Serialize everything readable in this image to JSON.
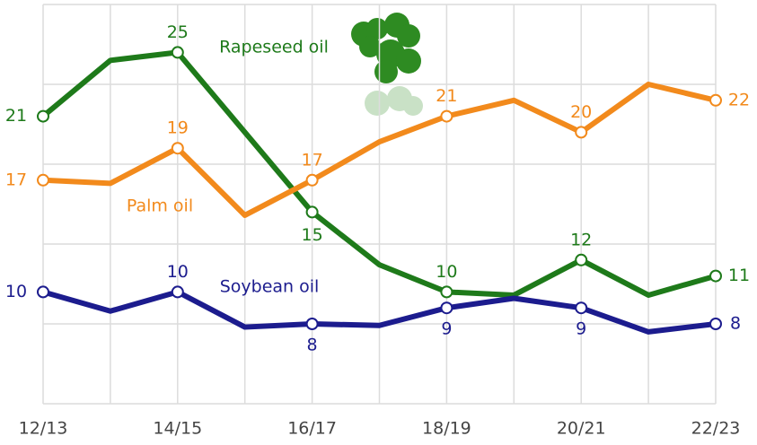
{
  "chart_data": {
    "type": "line",
    "categories": [
      "12/13",
      null,
      "14/15",
      null,
      "16/17",
      null,
      "18/19",
      null,
      "20/21",
      null,
      "22/23"
    ],
    "ylim": [
      3,
      28
    ],
    "series": [
      {
        "name": "Rapeseed oil",
        "color": "#1e7a1a",
        "values": [
          21,
          24.5,
          25,
          20,
          15,
          11.7,
          10,
          9.8,
          12,
          9.8,
          11
        ]
      },
      {
        "name": "Palm oil",
        "color": "#f28a1c",
        "values": [
          17,
          16.8,
          19,
          14.8,
          17,
          19.4,
          21,
          22,
          20,
          23,
          22
        ]
      },
      {
        "name": "Soybean oil",
        "color": "#1c1c8e",
        "values": [
          10,
          8.8,
          10,
          7.8,
          8,
          7.9,
          9,
          9.6,
          9,
          7.5,
          8
        ]
      }
    ]
  }
}
